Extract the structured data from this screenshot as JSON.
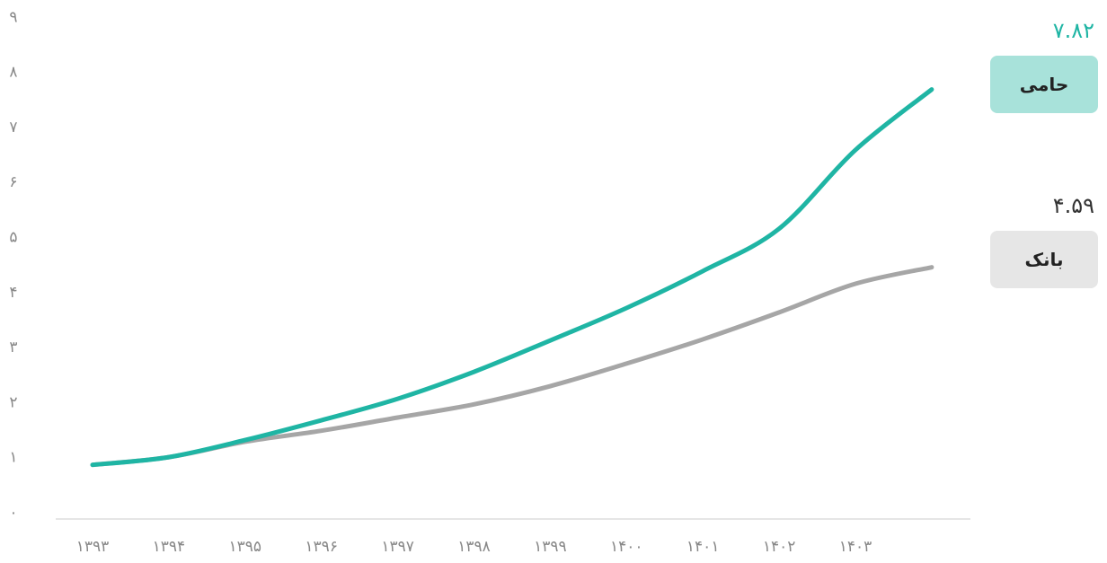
{
  "chart_data": {
    "type": "line",
    "categories": [
      "۱۳۹۳",
      "۱۳۹۴",
      "۱۳۹۵",
      "۱۳۹۶",
      "۱۳۹۷",
      "۱۳۹۸",
      "۱۳۹۹",
      "۱۴۰۰",
      "۱۴۰۱",
      "۱۴۰۲",
      "۱۴۰۳",
      null
    ],
    "series": [
      {
        "name": "حامی",
        "color": "#1fb5a4",
        "box_color": "#a8e2da",
        "values": [
          1.0,
          1.14,
          1.45,
          1.81,
          2.2,
          2.69,
          3.26,
          3.85,
          4.52,
          5.29,
          6.72,
          7.82
        ],
        "value_labels": [
          null,
          null,
          null,
          null,
          null,
          null,
          null,
          null,
          null,
          null,
          null,
          "۷.۸۲"
        ]
      },
      {
        "name": "بانک",
        "color": "#a6a6a6",
        "box_color": "#e6e6e6",
        "values": [
          1.0,
          1.14,
          1.42,
          1.62,
          1.86,
          2.1,
          2.43,
          2.84,
          3.28,
          3.77,
          4.29,
          4.59
        ],
        "value_labels": [
          null,
          null,
          null,
          null,
          null,
          null,
          null,
          null,
          null,
          null,
          null,
          "۴.۵۹"
        ]
      }
    ],
    "ylim": [
      0,
      9.3
    ],
    "yticks": [
      {
        "value": 0,
        "label": "۰"
      },
      {
        "value": 1,
        "label": "۱"
      },
      {
        "value": 2,
        "label": "۲"
      },
      {
        "value": 3,
        "label": "۳"
      },
      {
        "value": 4,
        "label": "۴"
      },
      {
        "value": 5,
        "label": "۵"
      },
      {
        "value": 6,
        "label": "۶"
      },
      {
        "value": 7,
        "label": "۷"
      },
      {
        "value": 8,
        "label": "۸"
      },
      {
        "value": 9,
        "label": "۹"
      }
    ],
    "grid": false
  }
}
